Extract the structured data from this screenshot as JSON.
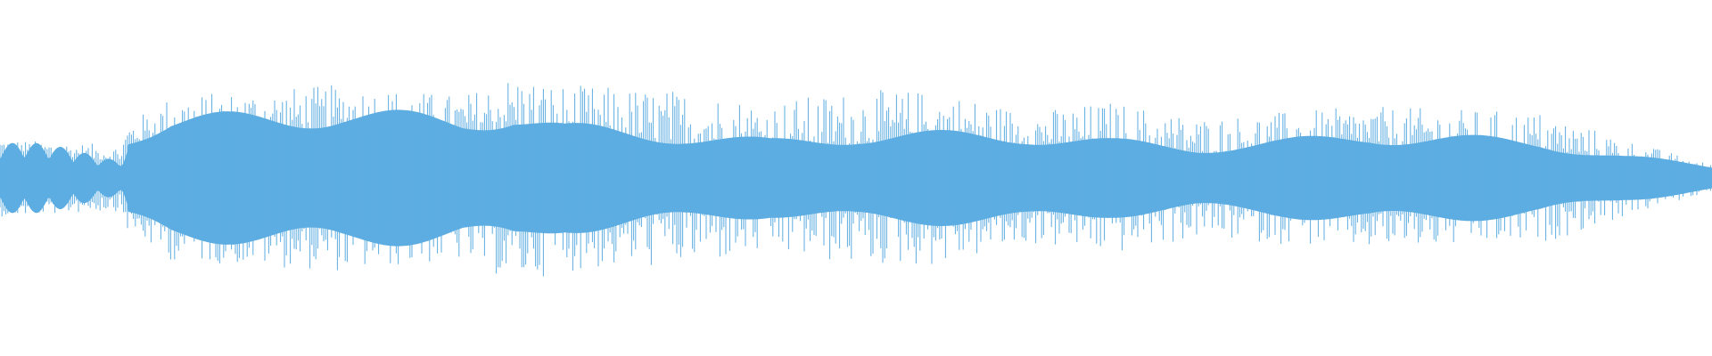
{
  "waveform": {
    "color": "#5dade2",
    "background": "#ffffff",
    "envelope": {
      "time_fraction": [
        0.0,
        0.07,
        0.075,
        0.1,
        0.2,
        0.27,
        0.3,
        0.33,
        0.4,
        0.45,
        0.5,
        0.55,
        0.6,
        0.65,
        0.7,
        0.75,
        0.8,
        0.9,
        0.95,
        1.0
      ],
      "body_amplitude": [
        0.25,
        0.15,
        0.3,
        0.4,
        0.45,
        0.4,
        0.45,
        0.35,
        0.3,
        0.25,
        0.3,
        0.3,
        0.3,
        0.25,
        0.22,
        0.25,
        0.3,
        0.25,
        0.15,
        0.08
      ],
      "peak_amplitude": [
        0.35,
        0.3,
        0.5,
        0.75,
        0.85,
        0.75,
        0.95,
        0.85,
        0.8,
        0.7,
        0.8,
        0.8,
        0.6,
        0.7,
        0.55,
        0.6,
        0.65,
        0.6,
        0.35,
        0.12
      ]
    }
  }
}
